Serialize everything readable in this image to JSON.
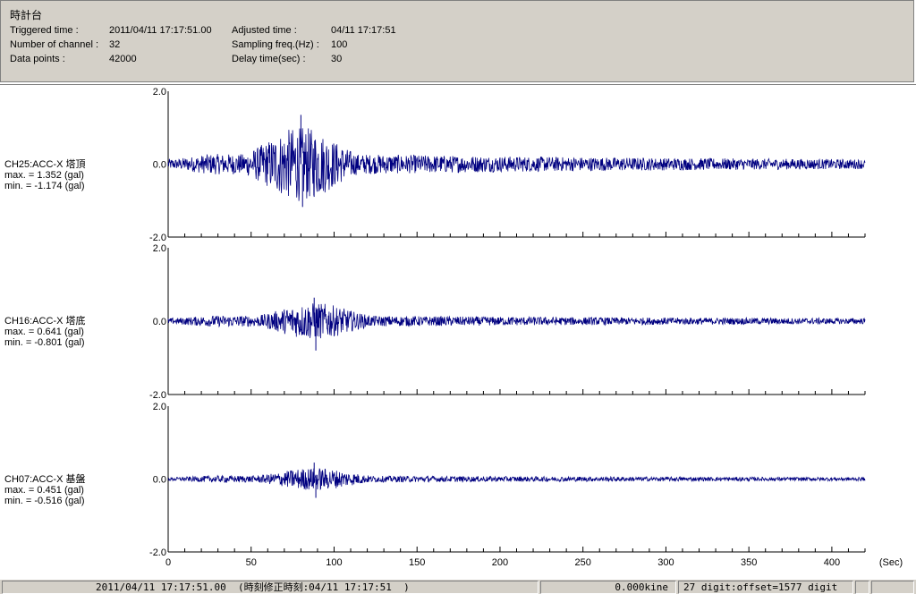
{
  "header": {
    "title": "時計台",
    "rows": [
      {
        "label": "Triggered time :",
        "value": "2011/04/11 17:17:51.00"
      },
      {
        "label": "Number of channel :",
        "value": "32"
      },
      {
        "label": "Data points :",
        "value": "42000"
      }
    ],
    "rows2": [
      {
        "label": "Adjusted time :",
        "value": "04/11 17:17:51"
      },
      {
        "label": "Sampling freq.(Hz) :",
        "value": "100"
      },
      {
        "label": "Delay time(sec) :",
        "value": "30"
      }
    ]
  },
  "channels": [
    {
      "name": "CH25:ACC-X 塔頂",
      "max": "max. = 1.352  (gal)",
      "min": "min. = -1.174  (gal)",
      "max_val": 1.352,
      "min_val": -1.174
    },
    {
      "name": "CH16:ACC-X 塔底",
      "max": "max. = 0.641  (gal)",
      "min": "min. = -0.801  (gal)",
      "max_val": 0.641,
      "min_val": -0.801
    },
    {
      "name": "CH07:ACC-X 基盤",
      "max": "max. = 0.451  (gal)",
      "min": "min. = -0.516  (gal)",
      "max_val": 0.451,
      "min_val": -0.516
    }
  ],
  "chart_data": {
    "type": "line",
    "xlabel": "(Sec)",
    "xlim": [
      0,
      420
    ],
    "x_ticks": [
      "0",
      "50",
      "100",
      "150",
      "200",
      "250",
      "300",
      "350",
      "400"
    ],
    "x_tick_values": [
      0,
      50,
      100,
      150,
      200,
      250,
      300,
      350,
      400
    ],
    "ylim": [
      -2.0,
      2.0
    ],
    "y_ticks": [
      "2.0",
      "0.0",
      "-2.0"
    ],
    "grid": false,
    "line_color": "#000080",
    "series": [
      {
        "name": "CH25:ACC-X 塔頂",
        "peak_time": 80,
        "max": 1.352,
        "min": -1.174
      },
      {
        "name": "CH16:ACC-X 塔底",
        "peak_time": 88,
        "max": 0.641,
        "min": -0.801
      },
      {
        "name": "CH07:ACC-X 基盤",
        "peak_time": 88,
        "max": 0.451,
        "min": -0.516
      }
    ]
  },
  "status": {
    "time": "2011/04/11 17:17:51.00  (時刻修正時刻:04/11 17:17:51  )",
    "kine": "0.000kine",
    "digit": "27 digit:offset=1577 digit",
    "extra1": "",
    "extra2": ""
  }
}
